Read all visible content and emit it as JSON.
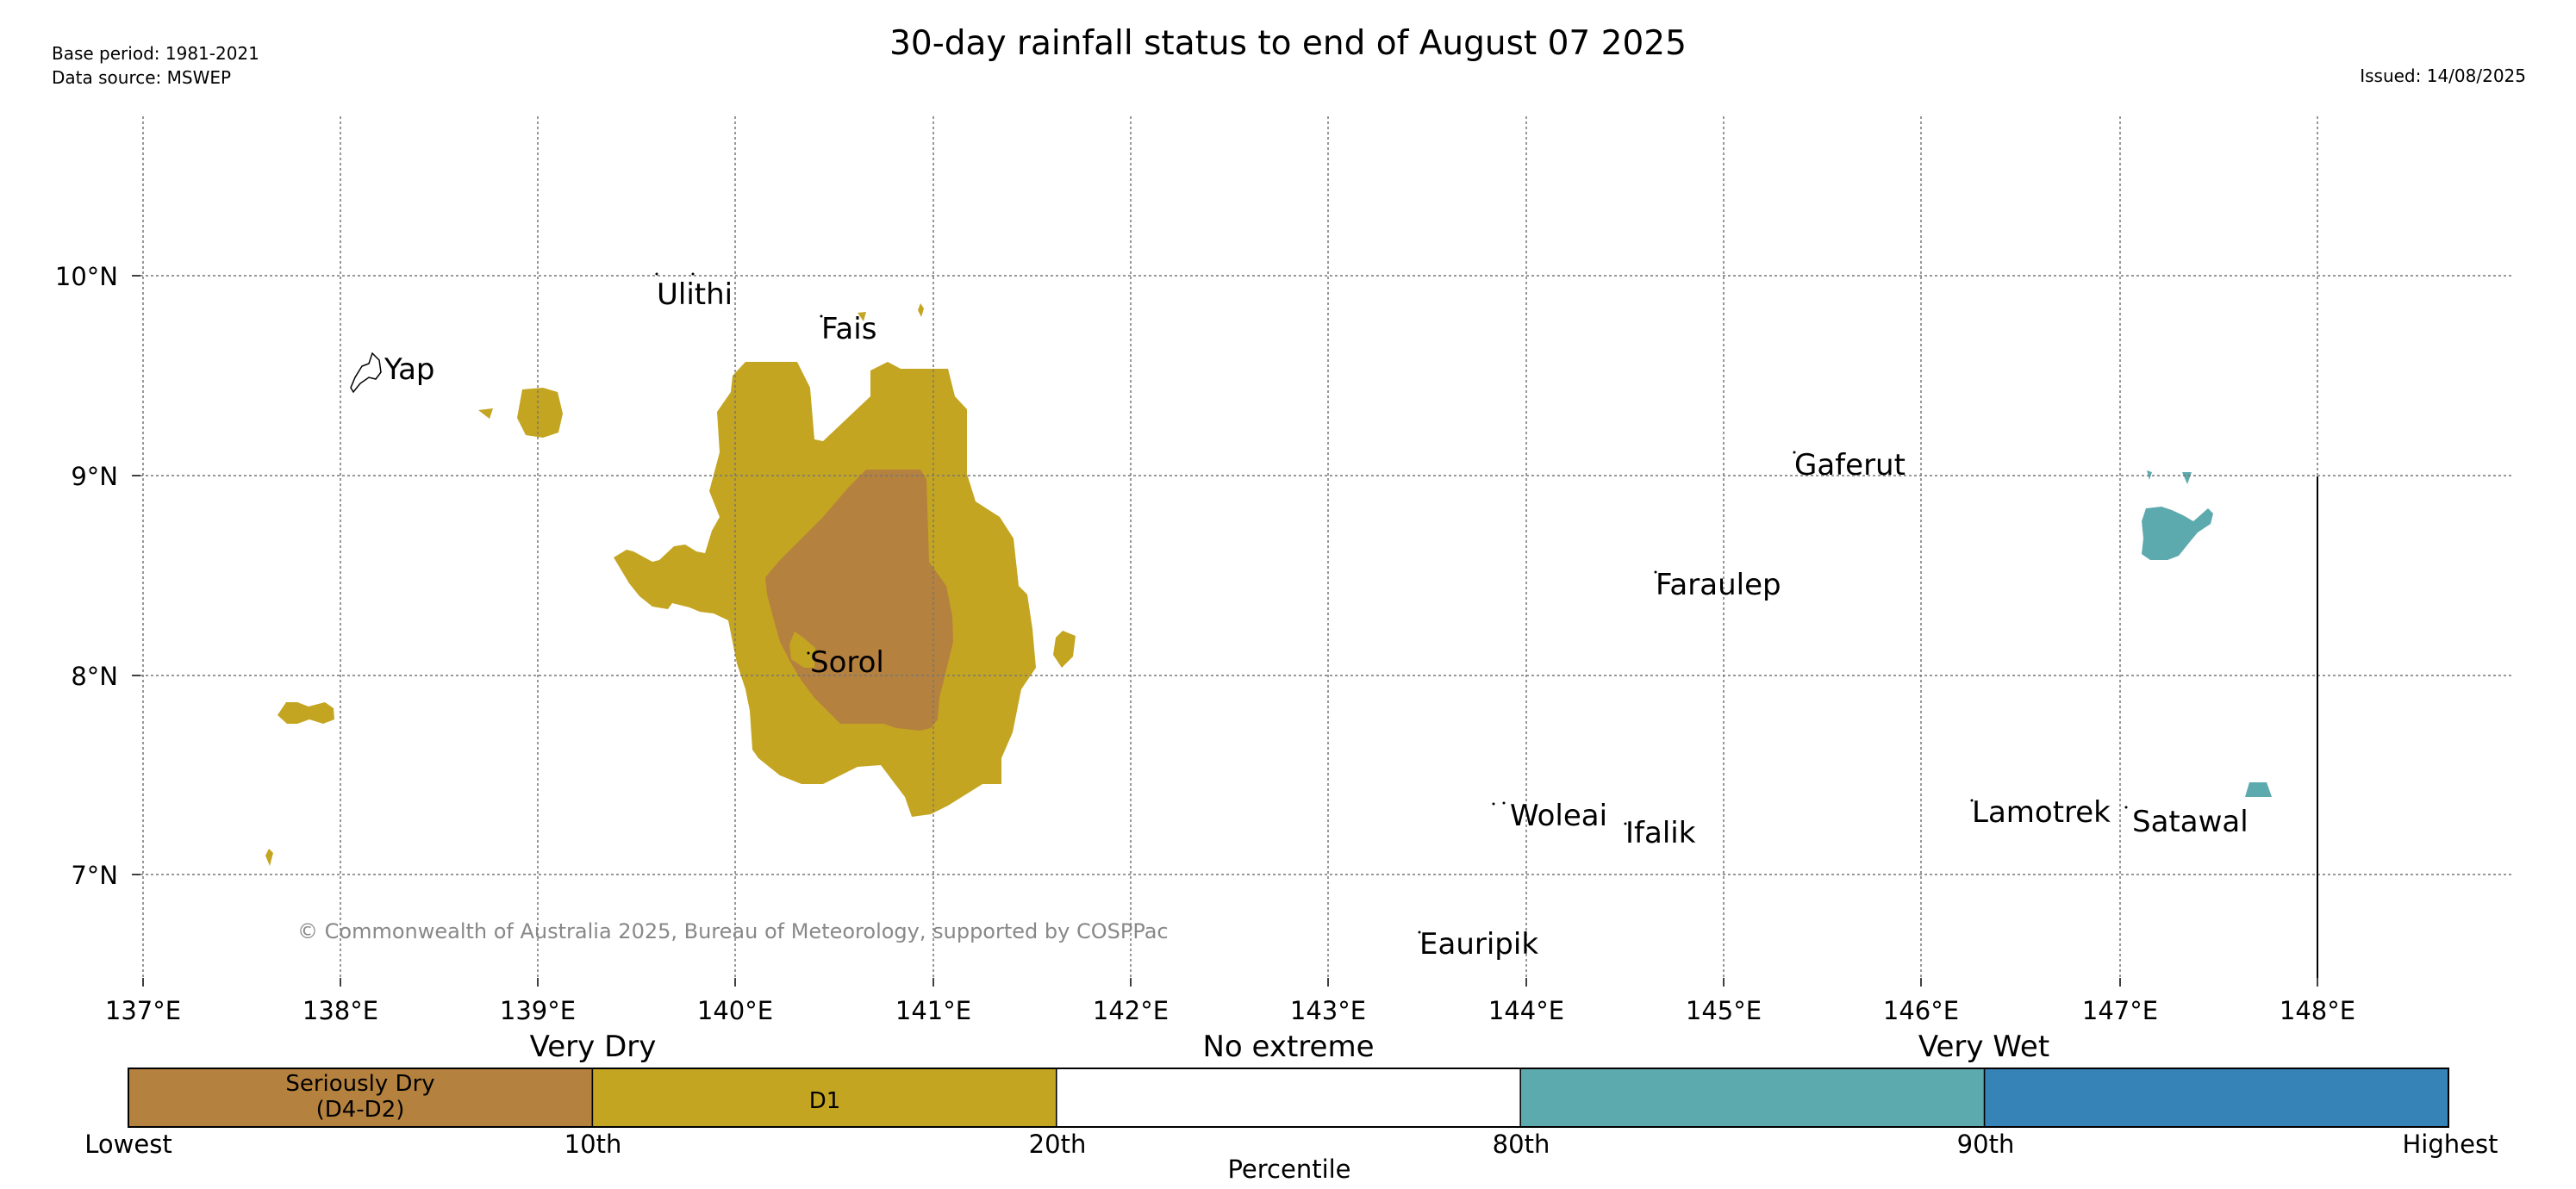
{
  "header": {
    "base_period": "Base period: 1981-2021",
    "data_source": "Data source: MSWEP",
    "title": "30-day rainfall status to end of August 07 2025",
    "issued": "Issued: 14/08/2025"
  },
  "map": {
    "lon_ticks": [
      "137°E",
      "138°E",
      "139°E",
      "140°E",
      "141°E",
      "142°E",
      "143°E",
      "144°E",
      "145°E",
      "146°E",
      "147°E",
      "148°E"
    ],
    "lat_ticks": [
      "10°N",
      "9°N",
      "8°N",
      "7°N"
    ],
    "copyright": "© Commonwealth of Australia 2025, Bureau of Meteorology, supported by COSPPac",
    "places": [
      "Ulithi",
      "Fais",
      "Yap",
      "Gaferut",
      "Faraulep",
      "Sorol",
      "Woleai",
      "Ifalik",
      "Lamotrek",
      "Satawal",
      "Eauripik"
    ]
  },
  "legend": {
    "group_labels": [
      "Very Dry",
      "No extreme",
      "Very Wet"
    ],
    "segments": [
      {
        "label_line1": "Seriously Dry",
        "label_line2": "(D4-D2)",
        "color": "#b5813e"
      },
      {
        "label_line1": "D1",
        "label_line2": "",
        "color": "#c4a521"
      },
      {
        "label_line1": "",
        "label_line2": "",
        "color": "#ffffff"
      },
      {
        "label_line1": "",
        "label_line2": "",
        "color": "#5ca9ae"
      },
      {
        "label_line1": "",
        "label_line2": "",
        "color": "#3683b8"
      }
    ],
    "tick_labels": [
      "Lowest",
      "10th",
      "20th",
      "80th",
      "90th",
      "Highest"
    ],
    "axis_label": "Percentile"
  }
}
